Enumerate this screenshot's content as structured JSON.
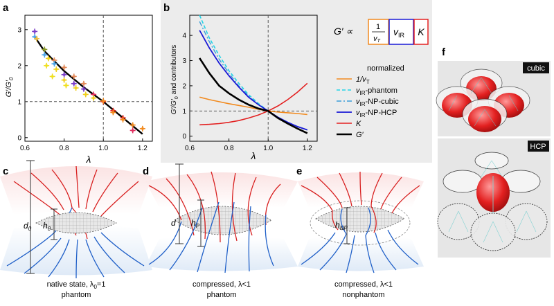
{
  "panels": {
    "a": {
      "letter": "a",
      "xlabel": "λ",
      "ylabel_main": "G′/G′",
      "ylabel_sub": "0"
    },
    "b": {
      "letter": "b",
      "xlabel": "λ",
      "ylabel_main": "G′/G′",
      "ylabel_sub": "0",
      "ylabel_tail": " and contributors",
      "formula_lhs": "G′ ∝",
      "formula_frac_num": "1",
      "formula_frac_den": "v",
      "formula_frac_den_sub": "T",
      "formula_mid": "v",
      "formula_mid_sub": "IR",
      "formula_right": "K"
    },
    "c": {
      "letter": "c",
      "h_label": "h",
      "h_sub": "0",
      "d_label": "d",
      "d_sub": "0",
      "caption1": "native state, λ",
      "caption1_sub": "0",
      "caption1_tail": "=1",
      "caption2": "phantom"
    },
    "d": {
      "letter": "d",
      "h_label": "h",
      "h_sub": "P",
      "d_label": "d",
      "caption1": "compressed, λ<1",
      "caption2": "phantom"
    },
    "e": {
      "letter": "e",
      "h_label": "h",
      "h_sub": "NP",
      "caption1": "compressed, λ<1",
      "caption2": "nonphantom"
    },
    "f": {
      "letter": "f",
      "tag_top": "cubic",
      "tag_bottom": "HCP"
    }
  },
  "colors": {
    "orange": "#f28a1e",
    "cyan": "#22d3e6",
    "blue": "#1a1ad6",
    "red": "#e32020",
    "black": "#000000",
    "grid": "#888888"
  },
  "legend": {
    "title": "normalized",
    "items": [
      {
        "key": "inv_vt",
        "main": "1/v",
        "sub": "T",
        "tail": "",
        "color": "#f28a1e",
        "dash": ""
      },
      {
        "key": "phantom",
        "main": "v",
        "sub": "IR",
        "tail": "-phantom",
        "color": "#22d3e6",
        "dash": "5,3"
      },
      {
        "key": "npcubic",
        "main": "v",
        "sub": "IR",
        "tail": "-NP-cubic",
        "color": "#3a9cd8",
        "dash": "7,3,2,3"
      },
      {
        "key": "nphcp",
        "main": "v",
        "sub": "IR",
        "tail": "-NP-HCP",
        "color": "#1a1ad6",
        "dash": ""
      },
      {
        "key": "K",
        "main": "K",
        "sub": "",
        "tail": "",
        "color": "#e32020",
        "dash": ""
      },
      {
        "key": "G",
        "main": "G′",
        "sub": "",
        "tail": "",
        "color": "#000000",
        "dash": ""
      }
    ]
  },
  "chart_data": [
    {
      "type": "scatter",
      "title": "",
      "xlabel": "λ",
      "ylabel": "G′/G′0",
      "xlim": [
        0.6,
        1.25
      ],
      "ylim": [
        -0.1,
        3.4
      ],
      "xticks": [
        "0.6",
        "0.8",
        "1.0",
        "1.2"
      ],
      "yticks": [
        "0",
        "1",
        "2",
        "3"
      ],
      "reference_lines": {
        "x": 1.0,
        "y": 1.0
      },
      "fit_line": {
        "x": [
          0.65,
          0.7,
          0.8,
          0.9,
          1.0,
          1.1,
          1.2
        ],
        "y": [
          2.8,
          2.4,
          1.85,
          1.4,
          1.0,
          0.55,
          0.1
        ]
      },
      "points": [
        {
          "x": 0.65,
          "y": 2.95,
          "c": "#7b3fc9"
        },
        {
          "x": 0.65,
          "y": 2.8,
          "c": "#4aa3e8"
        },
        {
          "x": 0.66,
          "y": 2.75,
          "c": "#f0c040"
        },
        {
          "x": 0.7,
          "y": 2.45,
          "c": "#8a9a2a"
        },
        {
          "x": 0.7,
          "y": 2.3,
          "c": "#4aa3e8"
        },
        {
          "x": 0.72,
          "y": 2.2,
          "c": "#f0d020"
        },
        {
          "x": 0.71,
          "y": 2.0,
          "c": "#f0e020"
        },
        {
          "x": 0.75,
          "y": 2.15,
          "c": "#e38a5a"
        },
        {
          "x": 0.75,
          "y": 2.05,
          "c": "#4aa3e8"
        },
        {
          "x": 0.76,
          "y": 1.9,
          "c": "#f0d020"
        },
        {
          "x": 0.74,
          "y": 1.7,
          "c": "#f0e020"
        },
        {
          "x": 0.8,
          "y": 1.95,
          "c": "#e38a5a"
        },
        {
          "x": 0.8,
          "y": 1.75,
          "c": "#7b3fc9"
        },
        {
          "x": 0.8,
          "y": 1.6,
          "c": "#f0d020"
        },
        {
          "x": 0.81,
          "y": 1.45,
          "c": "#f0e020"
        },
        {
          "x": 0.85,
          "y": 1.7,
          "c": "#e38a5a"
        },
        {
          "x": 0.85,
          "y": 1.5,
          "c": "#7b3fc9"
        },
        {
          "x": 0.86,
          "y": 1.38,
          "c": "#f0d020"
        },
        {
          "x": 0.9,
          "y": 1.5,
          "c": "#e38a5a"
        },
        {
          "x": 0.9,
          "y": 1.35,
          "c": "#7b3fc9"
        },
        {
          "x": 0.91,
          "y": 1.2,
          "c": "#f0d020"
        },
        {
          "x": 0.95,
          "y": 1.2,
          "c": "#e03060"
        },
        {
          "x": 0.95,
          "y": 1.1,
          "c": "#f0d020"
        },
        {
          "x": 1.0,
          "y": 1.0,
          "c": "#e32020"
        },
        {
          "x": 1.0,
          "y": 1.02,
          "c": "#f28a1e"
        },
        {
          "x": 1.05,
          "y": 0.75,
          "c": "#e32020"
        },
        {
          "x": 1.05,
          "y": 0.7,
          "c": "#f28a1e"
        },
        {
          "x": 1.1,
          "y": 0.55,
          "c": "#e32020"
        },
        {
          "x": 1.1,
          "y": 0.5,
          "c": "#f28a1e"
        },
        {
          "x": 1.15,
          "y": 0.35,
          "c": "#f28a1e"
        },
        {
          "x": 1.15,
          "y": 0.2,
          "c": "#e03060"
        },
        {
          "x": 1.2,
          "y": 0.25,
          "c": "#f28a1e"
        }
      ]
    },
    {
      "type": "line",
      "title": "",
      "xlabel": "λ",
      "ylabel": "G′/G′0 and contributors",
      "xlim": [
        0.6,
        1.25
      ],
      "ylim": [
        -0.2,
        4.8
      ],
      "xticks": [
        "0.6",
        "0.8",
        "1.0",
        "1.2"
      ],
      "yticks": [
        "0",
        "1",
        "2",
        "3",
        "4"
      ],
      "reference_lines": {
        "x": 1.0,
        "y": 1.0
      },
      "x": [
        0.65,
        0.7,
        0.75,
        0.8,
        0.85,
        0.9,
        0.95,
        1.0,
        1.05,
        1.1,
        1.15,
        1.2
      ],
      "series": [
        {
          "name": "1/vT",
          "values": [
            1.55,
            1.45,
            1.37,
            1.29,
            1.22,
            1.15,
            1.07,
            1.0,
            0.96,
            0.93,
            0.9,
            0.86
          ]
        },
        {
          "name": "vIR-phantom",
          "values": [
            4.8,
            3.9,
            3.2,
            2.6,
            2.1,
            1.65,
            1.3,
            1.0,
            0.75,
            0.55,
            0.38,
            0.25
          ]
        },
        {
          "name": "vIR-NP-cubic",
          "values": [
            4.55,
            3.75,
            3.05,
            2.5,
            2.0,
            1.6,
            1.25,
            1.0,
            0.75,
            0.55,
            0.38,
            0.25
          ]
        },
        {
          "name": "vIR-NP-HCP",
          "values": [
            4.2,
            3.5,
            2.9,
            2.4,
            1.95,
            1.55,
            1.25,
            1.0,
            0.75,
            0.55,
            0.38,
            0.25
          ]
        },
        {
          "name": "K",
          "values": [
            0.45,
            0.47,
            0.5,
            0.55,
            0.62,
            0.72,
            0.84,
            1.0,
            1.2,
            1.45,
            1.75,
            2.1
          ]
        },
        {
          "name": "G′",
          "values": [
            3.1,
            2.5,
            2.0,
            1.7,
            1.45,
            1.25,
            1.1,
            1.0,
            0.72,
            0.5,
            0.3,
            0.12
          ]
        }
      ]
    }
  ]
}
